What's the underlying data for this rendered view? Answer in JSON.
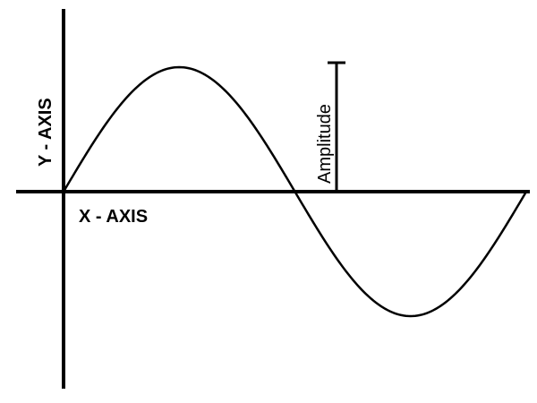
{
  "labels": {
    "x_axis": "X - AXIS",
    "y_axis": "Y - AXIS",
    "amplitude": "Amplitude"
  },
  "wave": {
    "shape": "sine",
    "cycles": 1
  },
  "colors": {
    "stroke": "#000000",
    "background": "#ffffff"
  }
}
